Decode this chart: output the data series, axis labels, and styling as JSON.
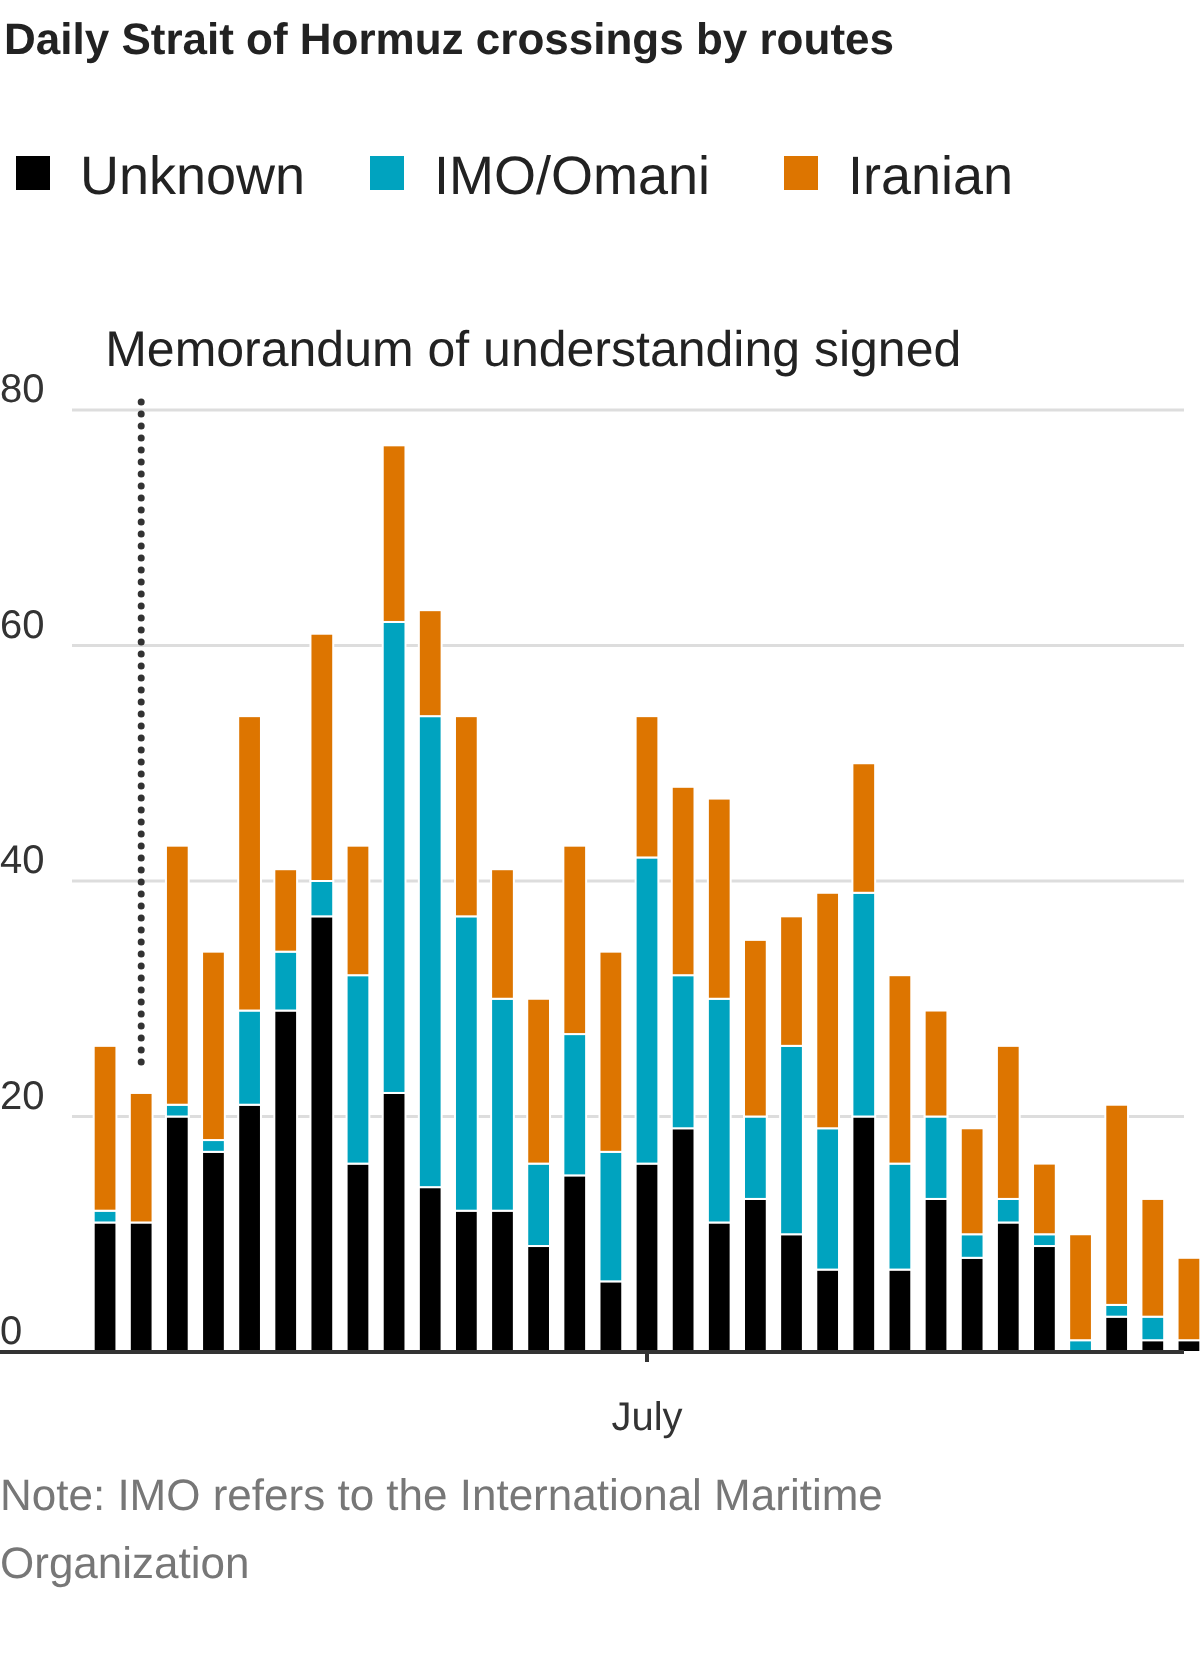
{
  "chart_data": {
    "type": "bar",
    "stacked": true,
    "title": "Daily Strait of Hormuz crossings by routes",
    "categories": [
      null,
      null,
      null,
      null,
      null,
      null,
      null,
      null,
      null,
      null,
      null,
      null,
      null,
      null,
      null,
      "July",
      null,
      null,
      null,
      null,
      null,
      null,
      null,
      null,
      null,
      null,
      null,
      null,
      null,
      null,
      null
    ],
    "ylim": [
      0,
      80
    ],
    "yticks": [
      0,
      20,
      40,
      60,
      80
    ],
    "grid": "y",
    "legend": "top",
    "series": [
      {
        "name": "Unknown",
        "color": "#000000",
        "values": [
          11,
          11,
          20,
          17,
          21,
          29,
          37,
          16,
          22,
          14,
          12,
          12,
          9,
          15,
          6,
          16,
          19,
          11,
          13,
          10,
          7,
          20,
          7,
          13,
          8,
          11,
          9,
          0,
          3,
          1,
          1
        ]
      },
      {
        "name": "IMO/Omani",
        "color": "#00a3bf",
        "values": [
          1,
          0,
          1,
          1,
          8,
          5,
          3,
          16,
          40,
          40,
          25,
          18,
          7,
          12,
          11,
          26,
          13,
          19,
          7,
          16,
          12,
          19,
          9,
          7,
          2,
          2,
          1,
          1,
          1,
          2,
          0
        ]
      },
      {
        "name": "Iranian",
        "color": "#dd7500",
        "values": [
          14,
          11,
          22,
          16,
          25,
          7,
          21,
          11,
          15,
          9,
          17,
          11,
          14,
          16,
          17,
          12,
          16,
          17,
          15,
          11,
          20,
          11,
          16,
          9,
          9,
          13,
          6,
          9,
          17,
          10,
          7
        ]
      }
    ],
    "annotations": [
      "Memorandum of understanding signed",
      "Note: IMO refers to the International Maritime Organization"
    ]
  }
}
